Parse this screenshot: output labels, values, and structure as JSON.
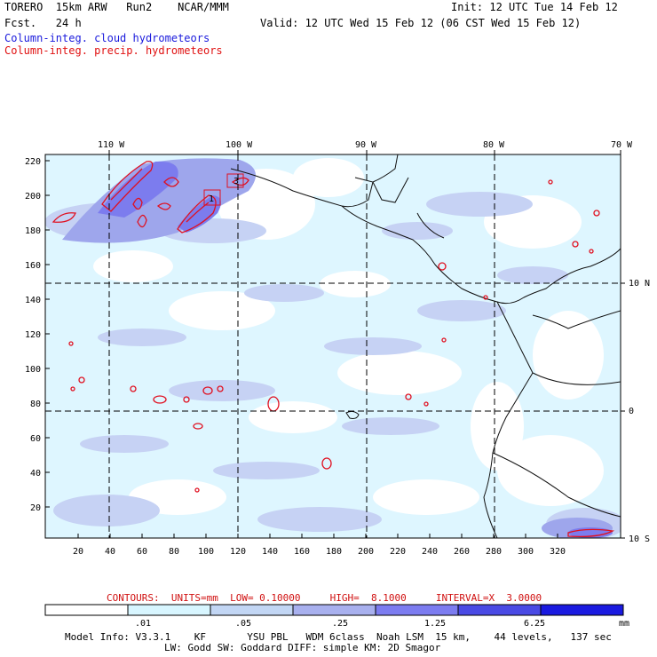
{
  "header": {
    "model": "TORERO  15km ARW   Run2    NCAR/MMM",
    "forecast": "Fcst.   24 h",
    "init": "Init: 12 UTC Tue 14 Feb 12",
    "valid": "Valid: 12 UTC Wed 15 Feb 12 (06 CST Wed 15 Feb 12)",
    "field_cloud": "Column-integ. cloud hydrometeors",
    "field_precip": "Column-integ. precip. hydrometeors"
  },
  "map": {
    "top_lon_labels": [
      "110 W",
      "100 W",
      "90 W",
      "80 W",
      "70 W"
    ],
    "right_lat_labels": [
      "10 N",
      "0",
      "10 S"
    ],
    "y_ticks": [
      "220",
      "200",
      "180",
      "160",
      "140",
      "120",
      "100",
      "80",
      "60",
      "40",
      "20"
    ],
    "x_ticks": [
      "20",
      "40",
      "60",
      "80",
      "100",
      "120",
      "140",
      "160",
      "180",
      "200",
      "220",
      "240",
      "260",
      "280",
      "300",
      "320"
    ],
    "box_labels": [
      "1",
      "3"
    ]
  },
  "contours_line": "CONTOURS:  UNITS=mm  LOW= 0.10000     HIGH=  8.1000     INTERVAL=X  3.0000",
  "colorbar": {
    "labels": [
      ".01",
      ".05",
      ".25",
      "1.25",
      "6.25"
    ],
    "unit": "mm",
    "colors": [
      "#ffffff",
      "#d8f6ff",
      "#c2d6f4",
      "#a8b0ee",
      "#7c7cf0",
      "#4a4ae4",
      "#1a1ae0"
    ]
  },
  "model_info": {
    "line1": "Model Info: V3.3.1    KF       YSU PBL   WDM 6class  Noah LSM  15 km,    44 levels,   137 sec",
    "line2": "LW: Godd SW: Goddard DIFF: simple KM: 2D Smagor"
  }
}
